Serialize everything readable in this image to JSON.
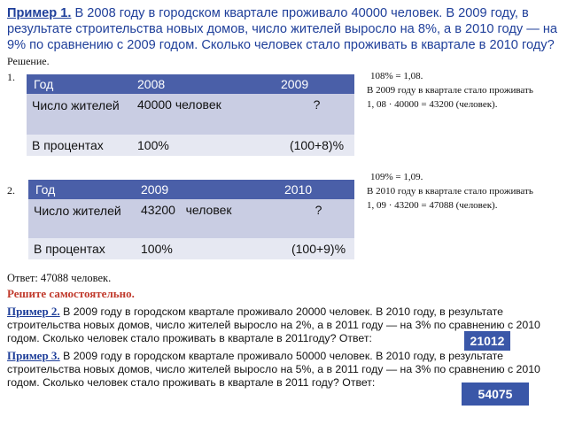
{
  "example1": {
    "label": "Пример 1.",
    "text": " В 2008 году в городском квартале проживало 40000 человек. В 2009 году, в результате строительства новых домов, число жителей выросло на 8%, а в 2010 году — на 9% по сравнению с 2009 годом. Сколько человек стало проживать в квартале в 2010 году?"
  },
  "solution_label": "Решение.",
  "step1": {
    "num": "1.",
    "table": {
      "headers": [
        "Год",
        "2008",
        "2009"
      ],
      "row1": [
        "Число жителей",
        "40000 человек",
        "?"
      ],
      "row2": [
        "В процентах",
        "100%",
        "(100+8)%"
      ]
    },
    "notes": [
      "108% = 1,08.",
      "В 2009 году  в квартале стало проживать",
      "1, 08 · 40000 = 43200 (человек)."
    ]
  },
  "step2": {
    "num": "2.",
    "table": {
      "headers": [
        "Год",
        "2009",
        "2010"
      ],
      "row1": [
        "Число жителей",
        "43200   человек",
        "?"
      ],
      "row2": [
        "В процентах",
        "100%",
        "(100+9)%"
      ]
    },
    "notes": [
      "109% = 1,09.",
      "В 2010 году в квартале стало проживать",
      "1, 09 · 43200 = 47088 (человек)."
    ]
  },
  "answer": "Ответ: 47088 человек.",
  "self_solve": "Решите самостоятельно.",
  "example2": {
    "label": "Пример 2.",
    "text": " В 2009 году в городском квартале проживало 20000 человек. В 2010 году, в результате строительства новых домов, число жителей выросло на 2%, а в 2011 году — на 3% по сравнению с 2010 годом. Сколько человек стало проживать в квартале в 2011году?  Ответ:",
    "answer": "21012"
  },
  "example3": {
    "label": "Пример 3.",
    "text": " В 2009 году в городском квартале проживало 50000 человек. В 2010 году, в результате строительства новых домов, число жителей выросло на 5%, а в 2011 году — на 3% по сравнению с 2010 годом. Сколько человек стало проживать в квартале в 2011 году? Ответ:",
    "answer": "54075"
  },
  "colors": {
    "title_blue": "#1f3f9a",
    "table_header": "#4a5fa8",
    "row_a": "#c9cde3",
    "row_b": "#e6e8f2",
    "answer_box": "#3a57a8",
    "red": "#c0392b"
  }
}
